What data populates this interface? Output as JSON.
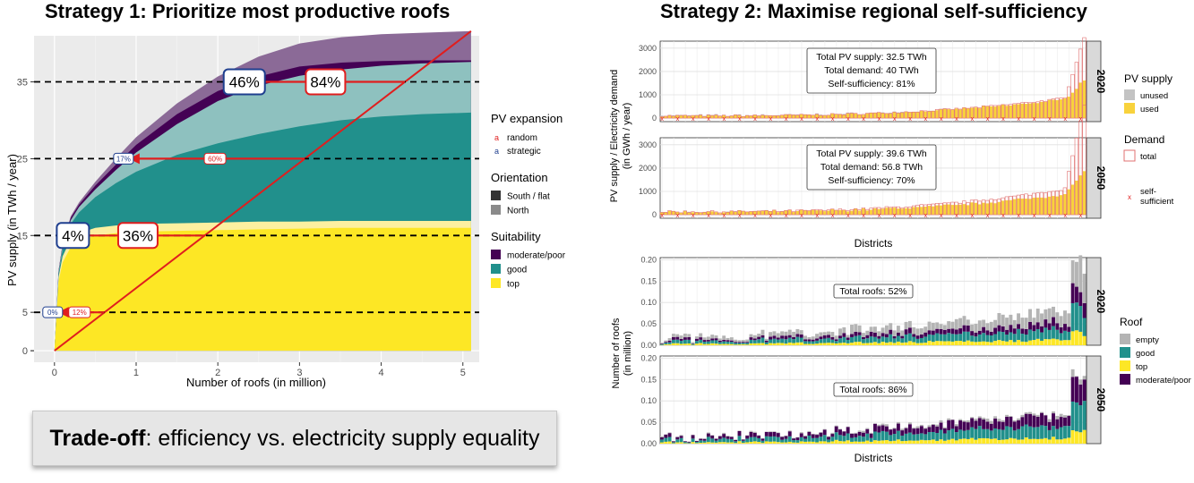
{
  "titles": {
    "strategy1": "Strategy 1: Prioritize most productive roofs",
    "strategy2": "Strategy 2: Maximise regional self-sufficiency"
  },
  "tradeoff": {
    "bold": "Trade-off",
    "rest": ": efficiency vs. electricity supply equality"
  },
  "colors": {
    "moderate_poor_dark": "#440154",
    "moderate_poor_light": "#8b6a97",
    "good_dark": "#21908c",
    "good_light": "#8ec1bf",
    "top_dark": "#fde725",
    "top_light": "#fdf0a0",
    "random": "#e01e1e",
    "strategic": "#1f3f8f",
    "empty": "#b4b4b4",
    "unused": "#c3c3c3",
    "used": "#f8d23c"
  },
  "chart_data": [
    {
      "id": "supply_curve",
      "type": "area",
      "xlabel": "Number of roofs (in million)",
      "ylabel": "PV supply (in TWh / year)",
      "xlim": [
        -0.25,
        5.2
      ],
      "ylim": [
        -1.5,
        41
      ],
      "xticks": [
        "0",
        "1",
        "2",
        "3",
        "4",
        "5"
      ],
      "yticks": [
        "0",
        "5",
        "15",
        "25",
        "35"
      ],
      "x": [
        0,
        0.05,
        0.1,
        0.2,
        0.3,
        0.5,
        0.75,
        1,
        1.5,
        2,
        2.5,
        3,
        3.5,
        4,
        4.5,
        5.1
      ],
      "series": [
        {
          "name": "top (South / flat)",
          "values": [
            0,
            9,
            11.5,
            13.5,
            14.3,
            15,
            15.3,
            15.5,
            15.6,
            15.7,
            15.8,
            15.9,
            16,
            16,
            16,
            16
          ]
        },
        {
          "name": "top (North)",
          "values": [
            0,
            9.6,
            12.3,
            14.5,
            15.3,
            16,
            16.3,
            16.5,
            16.6,
            16.7,
            16.8,
            16.8,
            16.9,
            16.9,
            16.9,
            16.9
          ]
        },
        {
          "name": "good (South / flat)",
          "values": [
            0,
            10,
            13.2,
            16.5,
            18,
            20,
            21.8,
            23.3,
            25.5,
            27,
            28.2,
            29.2,
            30,
            30.5,
            30.8,
            31
          ]
        },
        {
          "name": "good (North)",
          "values": [
            0,
            10.3,
            13.6,
            17,
            18.7,
            21,
            23.5,
            25.8,
            29.5,
            32.5,
            34.5,
            35.8,
            36.6,
            37.1,
            37.4,
            37.6
          ]
        },
        {
          "name": "moderate/poor (South / flat)",
          "values": [
            0,
            10.4,
            13.8,
            17.3,
            19,
            21.5,
            24.2,
            26.8,
            30.8,
            33.8,
            35.7,
            37,
            37.5,
            37.7,
            37.8,
            37.8
          ]
        },
        {
          "name": "moderate/poor (North)",
          "values": [
            0,
            10.45,
            13.9,
            17.5,
            19.3,
            22,
            25,
            27.8,
            32.2,
            35.7,
            38.3,
            40,
            40.8,
            41.2,
            41.4,
            41.6
          ]
        }
      ],
      "random_line": {
        "x": [
          0,
          5.1
        ],
        "y": [
          0,
          41.6
        ]
      },
      "thresholds": [
        {
          "supply": "5",
          "strategic": "0%",
          "random": "12%"
        },
        {
          "supply": "15",
          "strategic": "4%",
          "random": "36%"
        },
        {
          "supply": "25",
          "strategic": "17%",
          "random": "60%"
        },
        {
          "supply": "35",
          "strategic": "46%",
          "random": "84%"
        }
      ],
      "legend": {
        "pv_expansion_title": "PV expansion",
        "pv_expansion": [
          {
            "key": "a",
            "label": "random"
          },
          {
            "key": "a",
            "label": "strategic"
          }
        ],
        "orientation_title": "Orientation",
        "orientation": [
          "South / flat",
          "North"
        ],
        "suitability_title": "Suitability",
        "suitability": [
          "moderate/poor",
          "good",
          "top"
        ]
      }
    },
    {
      "id": "district_supply",
      "type": "bar",
      "xlabel": "Districts",
      "ylabel": "PV supply / Electricity demand\n(in GWh / year)",
      "ylim": [
        -150,
        3300
      ],
      "yticks": [
        "0",
        "1000",
        "2000",
        "3000"
      ],
      "panels": [
        {
          "label": "2020",
          "box": [
            "Total PV supply: 32.5 TWh",
            "Total demand: 40 TWh",
            "Self-sufficiency: 81%"
          ]
        },
        {
          "label": "2050",
          "box": [
            "Total PV supply: 39.6 TWh",
            "Total demand: 56.8 TWh",
            "Self-sufficiency: 70%"
          ]
        }
      ],
      "legend": {
        "supply_title": "PV supply",
        "supply": [
          "unused",
          "used"
        ],
        "demand_title": "Demand",
        "demand": [
          "total"
        ],
        "self_sufficient": "self-\nsufficient"
      }
    },
    {
      "id": "district_roofs",
      "type": "bar",
      "xlabel": "Districts",
      "ylabel": "Number of roofs\n(in million)",
      "ylim": [
        0,
        0.205
      ],
      "yticks": [
        "0.00",
        "0.05",
        "0.10",
        "0.15",
        "0.20"
      ],
      "panels": [
        {
          "label": "2020",
          "box": "Total roofs: 52%"
        },
        {
          "label": "2050",
          "box": "Total roofs: 86%"
        }
      ],
      "legend": {
        "title": "Roof",
        "items": [
          "empty",
          "good",
          "top",
          "moderate/poor"
        ]
      }
    }
  ]
}
